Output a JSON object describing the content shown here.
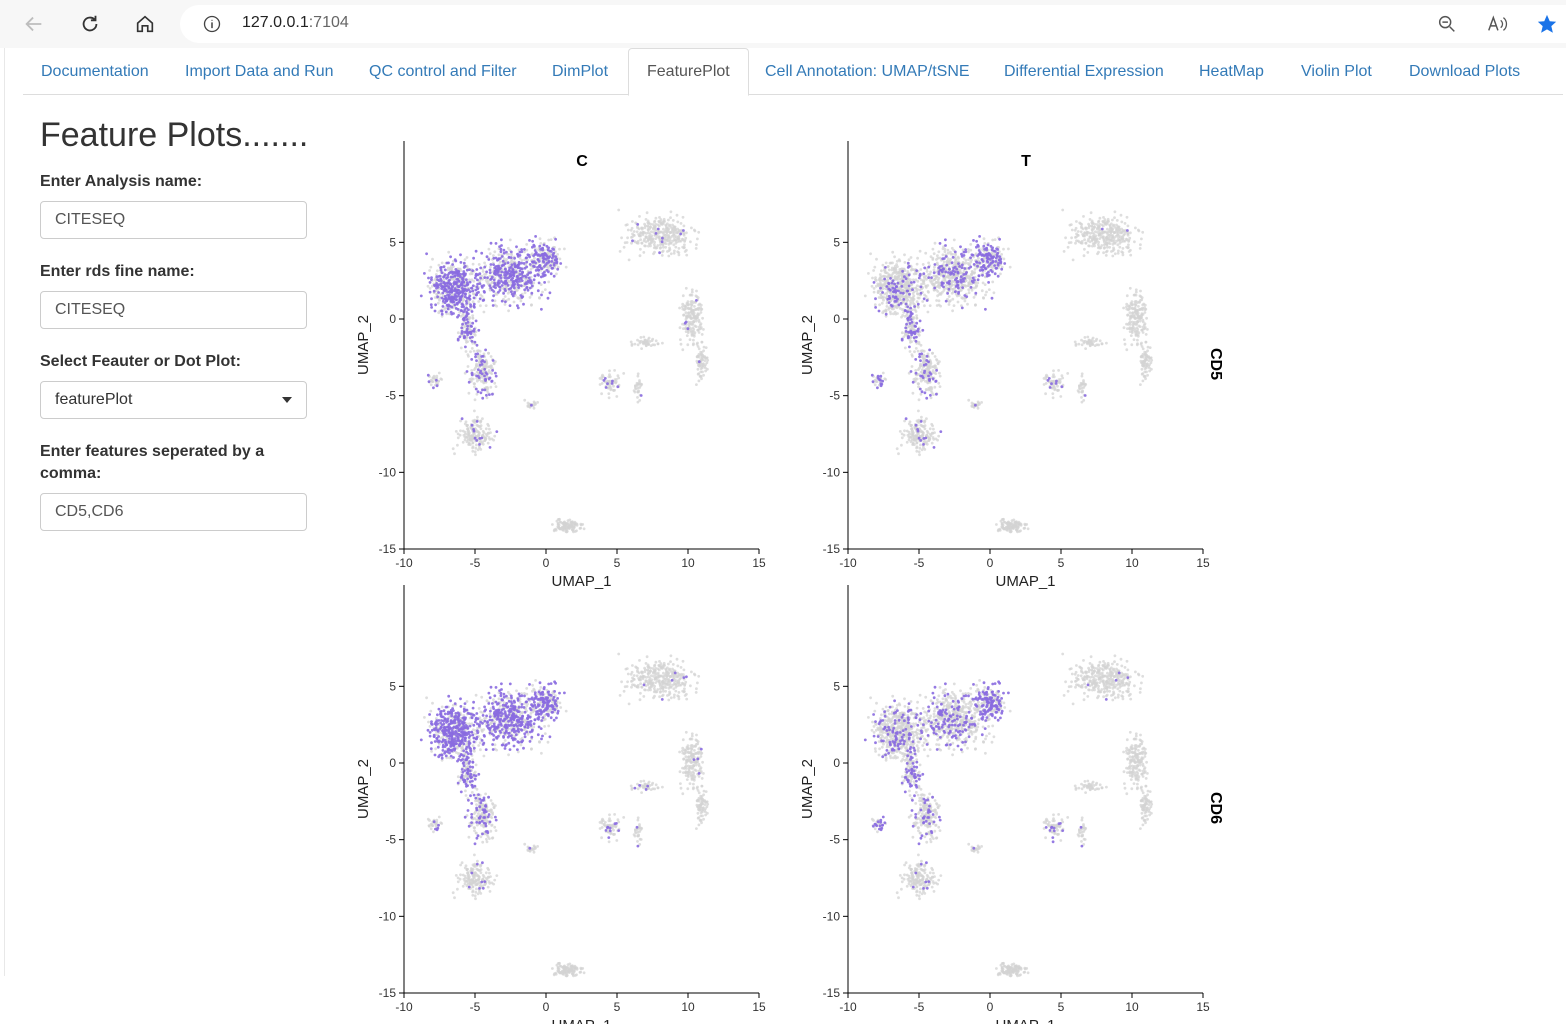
{
  "browser": {
    "url_host": "127.0.0.1",
    "url_port": ":7104"
  },
  "tabs": [
    {
      "label": "Documentation",
      "active": false
    },
    {
      "label": "Import Data and Run",
      "active": false
    },
    {
      "label": "QC control and Filter",
      "active": false
    },
    {
      "label": "DimPlot",
      "active": false
    },
    {
      "label": "FeaturePlot",
      "active": true
    },
    {
      "label": "Cell Annotation: UMAP/tSNE",
      "active": false
    },
    {
      "label": "Differential Expression",
      "active": false
    },
    {
      "label": "HeatMap",
      "active": false
    },
    {
      "label": "Violin Plot",
      "active": false
    },
    {
      "label": "Download Plots",
      "active": false
    }
  ],
  "sidebar": {
    "title": "Feature Plots.......",
    "analysis_label": "Enter Analysis name:",
    "analysis_value": "CITESEQ",
    "rds_label": "Enter rds fine name:",
    "rds_value": "CITESEQ",
    "plot_type_label": "Select Feauter or Dot Plot:",
    "plot_type_value": "featurePlot",
    "features_label": "Enter features seperated by a comma:",
    "features_value": "CD5,CD6"
  },
  "chart_data": {
    "type": "scatter",
    "columns": [
      "C",
      "T"
    ],
    "rows": [
      "CD5",
      "CD6"
    ],
    "xlabel": "UMAP_1",
    "ylabel": "UMAP_2",
    "xlim": [
      -10,
      15
    ],
    "ylim": [
      -15,
      9
    ],
    "xticks": [
      -10,
      -5,
      0,
      5,
      10,
      15
    ],
    "yticks": [
      5,
      0,
      -5,
      -10,
      -15
    ],
    "colors": {
      "low": "#d3d3d3",
      "high": "#8a6ce0"
    }
  }
}
